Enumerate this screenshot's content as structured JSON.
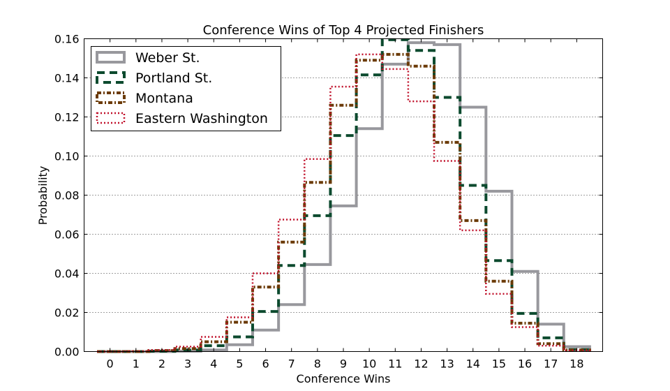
{
  "chart_data": {
    "type": "step",
    "title": "Conference Wins of Top 4 Projected Finishers",
    "xlabel": "Conference Wins",
    "ylabel": "Probability",
    "categories": [
      "0",
      "1",
      "2",
      "3",
      "4",
      "5",
      "6",
      "7",
      "8",
      "9",
      "10",
      "11",
      "12",
      "13",
      "14",
      "15",
      "16",
      "17",
      "18"
    ],
    "xlim": [
      -1,
      19
    ],
    "ylim": [
      0,
      0.16
    ],
    "yticks": [
      "0.00",
      "0.02",
      "0.04",
      "0.06",
      "0.08",
      "0.10",
      "0.12",
      "0.14",
      "0.16"
    ],
    "grid": "y-dotted",
    "legend": "top-left",
    "series": [
      {
        "name": "Weber St.",
        "color": "#98989d",
        "style": "solid",
        "values": [
          0.0,
          0.0,
          0.0,
          0.0002,
          0.0008,
          0.0035,
          0.011,
          0.024,
          0.0445,
          0.0745,
          0.114,
          0.147,
          0.158,
          0.157,
          0.125,
          0.082,
          0.041,
          0.014,
          0.0025
        ]
      },
      {
        "name": "Portland St.",
        "color": "#0c4a2e",
        "style": "dashed",
        "values": [
          0.0,
          0.0,
          0.0002,
          0.0008,
          0.003,
          0.0075,
          0.0205,
          0.044,
          0.0695,
          0.1105,
          0.1415,
          0.1595,
          0.154,
          0.13,
          0.085,
          0.0465,
          0.0195,
          0.007,
          0.001
        ]
      },
      {
        "name": "Montana",
        "color": "#6b3a06",
        "style": "dashdot",
        "values": [
          0.0,
          0.0,
          0.0005,
          0.0015,
          0.005,
          0.015,
          0.033,
          0.056,
          0.0865,
          0.126,
          0.149,
          0.152,
          0.146,
          0.107,
          0.067,
          0.036,
          0.0145,
          0.004,
          0.0008
        ]
      },
      {
        "name": "Eastern Washington",
        "color": "#c0102a",
        "style": "dotted",
        "values": [
          0.0,
          0.0002,
          0.0008,
          0.0025,
          0.0075,
          0.0175,
          0.04,
          0.0675,
          0.0985,
          0.1355,
          0.152,
          0.1445,
          0.128,
          0.0975,
          0.062,
          0.0295,
          0.0125,
          0.003,
          0.0006
        ]
      }
    ]
  }
}
